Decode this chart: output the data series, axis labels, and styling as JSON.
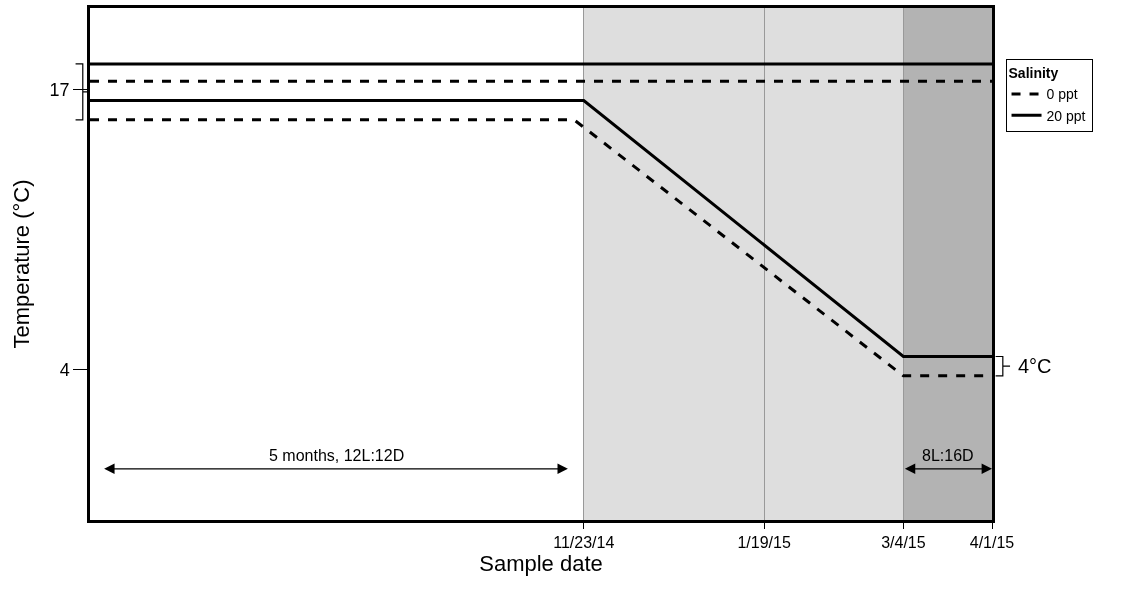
{
  "chart_data": {
    "type": "line",
    "xlabel": "Sample date",
    "ylabel": "Temperature (°C)",
    "legend_title": "Salinity",
    "legend": "right",
    "grid": "x",
    "marker": "none",
    "xlim": [
      "2014-06-20",
      "2015-04-01"
    ],
    "xticks": [
      {
        "value": "2014-11-23",
        "label": "11/23/14"
      },
      {
        "value": "2015-01-19",
        "label": "1/19/15"
      },
      {
        "value": "2015-03-04",
        "label": "3/4/15"
      },
      {
        "value": "2015-04-01",
        "label": "4/1/15"
      }
    ],
    "ylim": [
      -3,
      20.8
    ],
    "yticks": [
      4,
      17
    ],
    "series": [
      {
        "name": "0 ppt",
        "color": "#000000",
        "line_style": "dashed",
        "x": [
          "2014-06-20",
          "2015-04-01"
        ],
        "values": [
          17.4,
          17.4
        ]
      },
      {
        "name": "20 ppt",
        "color": "#000000",
        "line_style": "solid",
        "x": [
          "2014-06-20",
          "2015-04-01"
        ],
        "values": [
          18.2,
          18.2
        ]
      },
      {
        "color": "#000000",
        "line_style": "dashed",
        "x": [
          "2014-06-20",
          "2014-11-20",
          "2015-03-04",
          "2015-04-01"
        ],
        "values": [
          15.6,
          15.6,
          3.7,
          3.7
        ]
      },
      {
        "color": "#000000",
        "line_style": "solid",
        "x": [
          "2014-06-20",
          "2014-11-23",
          "2015-03-04",
          "2015-04-01"
        ],
        "values": [
          16.5,
          16.5,
          4.6,
          4.6
        ]
      }
    ],
    "bands": [
      {
        "axis": "x",
        "from": "2014-11-23",
        "to": "2015-03-04",
        "color": "#dedede"
      },
      {
        "axis": "x",
        "from": "2015-03-04",
        "to": "2015-04-01",
        "color": "#b3b3b3",
        "label": "8L:16D"
      }
    ],
    "annotations": [
      "5 months, 12L:12D",
      {
        "text": "4°C",
        "x": "2015-04-01",
        "y": 4.15
      }
    ]
  }
}
